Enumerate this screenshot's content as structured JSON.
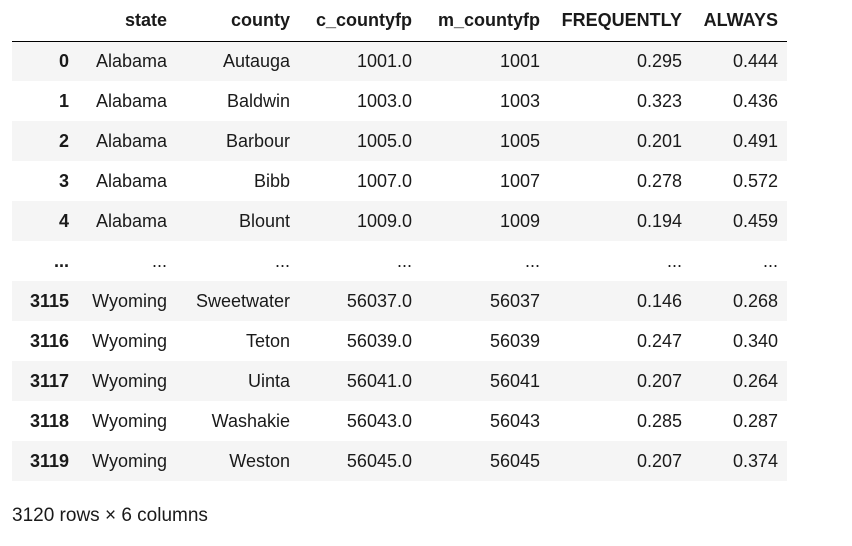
{
  "dataframe": {
    "columns": [
      "state",
      "county",
      "c_countyfp",
      "m_countyfp",
      "FREQUENTLY",
      "ALWAYS"
    ],
    "rows": [
      {
        "index": "0",
        "cells": [
          "Alabama",
          "Autauga",
          "1001.0",
          "1001",
          "0.295",
          "0.444"
        ]
      },
      {
        "index": "1",
        "cells": [
          "Alabama",
          "Baldwin",
          "1003.0",
          "1003",
          "0.323",
          "0.436"
        ]
      },
      {
        "index": "2",
        "cells": [
          "Alabama",
          "Barbour",
          "1005.0",
          "1005",
          "0.201",
          "0.491"
        ]
      },
      {
        "index": "3",
        "cells": [
          "Alabama",
          "Bibb",
          "1007.0",
          "1007",
          "0.278",
          "0.572"
        ]
      },
      {
        "index": "4",
        "cells": [
          "Alabama",
          "Blount",
          "1009.0",
          "1009",
          "0.194",
          "0.459"
        ]
      },
      {
        "index": "...",
        "cells": [
          "...",
          "...",
          "...",
          "...",
          "...",
          "..."
        ]
      },
      {
        "index": "3115",
        "cells": [
          "Wyoming",
          "Sweetwater",
          "56037.0",
          "56037",
          "0.146",
          "0.268"
        ]
      },
      {
        "index": "3116",
        "cells": [
          "Wyoming",
          "Teton",
          "56039.0",
          "56039",
          "0.247",
          "0.340"
        ]
      },
      {
        "index": "3117",
        "cells": [
          "Wyoming",
          "Uinta",
          "56041.0",
          "56041",
          "0.207",
          "0.264"
        ]
      },
      {
        "index": "3118",
        "cells": [
          "Wyoming",
          "Washakie",
          "56043.0",
          "56043",
          "0.285",
          "0.287"
        ]
      },
      {
        "index": "3119",
        "cells": [
          "Wyoming",
          "Weston",
          "56045.0",
          "56045",
          "0.207",
          "0.374"
        ]
      }
    ],
    "footer": "3120 rows × 6 columns"
  }
}
